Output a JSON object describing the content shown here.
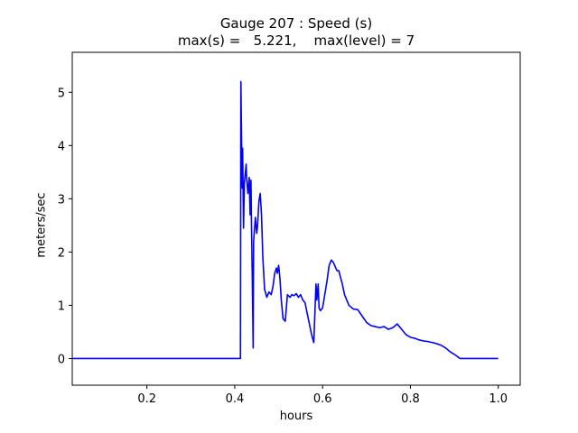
{
  "chart_data": {
    "type": "line",
    "title": "Gauge 207 : Speed (s)",
    "subtitle": "max(s) =   5.221,    max(level) = 7",
    "xlabel": "hours",
    "ylabel": "meters/sec",
    "xlim": [
      0.03,
      1.05
    ],
    "ylim": [
      -0.5,
      5.75
    ],
    "xticks": [
      0.2,
      0.4,
      0.6,
      0.8,
      1.0
    ],
    "xtick_labels": [
      "0.2",
      "0.4",
      "0.6",
      "0.8",
      "1.0"
    ],
    "yticks": [
      0,
      1,
      2,
      3,
      4,
      5
    ],
    "ytick_labels": [
      "0",
      "1",
      "2",
      "3",
      "4",
      "5"
    ],
    "grid": false,
    "series": [
      {
        "color": "#0000ff",
        "x": [
          0.03,
          0.413,
          0.414,
          0.415,
          0.417,
          0.418,
          0.42,
          0.422,
          0.426,
          0.427,
          0.43,
          0.433,
          0.435,
          0.437,
          0.438,
          0.44,
          0.442,
          0.443,
          0.447,
          0.45,
          0.452,
          0.455,
          0.458,
          0.461,
          0.464,
          0.468,
          0.473,
          0.478,
          0.483,
          0.487,
          0.491,
          0.495,
          0.497,
          0.5,
          0.503,
          0.506,
          0.51,
          0.515,
          0.52,
          0.526,
          0.53,
          0.535,
          0.54,
          0.545,
          0.55,
          0.555,
          0.56,
          0.565,
          0.57,
          0.575,
          0.58,
          0.585,
          0.587,
          0.59,
          0.592,
          0.595,
          0.6,
          0.605,
          0.61,
          0.615,
          0.62,
          0.625,
          0.63,
          0.633,
          0.637,
          0.64,
          0.645,
          0.65,
          0.66,
          0.67,
          0.68,
          0.69,
          0.7,
          0.71,
          0.72,
          0.73,
          0.74,
          0.75,
          0.76,
          0.77,
          0.775,
          0.78,
          0.785,
          0.79,
          0.8,
          0.81,
          0.82,
          0.83,
          0.84,
          0.85,
          0.86,
          0.87,
          0.88,
          0.89,
          0.9,
          0.905,
          0.91,
          0.913,
          0.95,
          1.0
        ],
        "y": [
          0.0,
          0.0,
          5.2,
          4.5,
          3.2,
          3.95,
          2.45,
          3.3,
          3.65,
          3.4,
          3.1,
          3.4,
          2.7,
          3.35,
          2.6,
          1.5,
          0.2,
          2.2,
          2.65,
          2.35,
          2.5,
          2.95,
          3.1,
          2.7,
          1.9,
          1.3,
          1.15,
          1.25,
          1.2,
          1.35,
          1.6,
          1.7,
          1.6,
          1.75,
          1.5,
          1.1,
          0.75,
          0.7,
          1.2,
          1.15,
          1.2,
          1.18,
          1.22,
          1.15,
          1.2,
          1.1,
          1.05,
          0.85,
          0.65,
          0.45,
          0.3,
          1.4,
          1.1,
          1.4,
          0.95,
          0.9,
          0.95,
          1.2,
          1.45,
          1.75,
          1.85,
          1.8,
          1.7,
          1.65,
          1.65,
          1.55,
          1.4,
          1.2,
          1.0,
          0.93,
          0.92,
          0.8,
          0.68,
          0.62,
          0.6,
          0.58,
          0.6,
          0.55,
          0.58,
          0.65,
          0.6,
          0.55,
          0.5,
          0.45,
          0.4,
          0.38,
          0.35,
          0.33,
          0.32,
          0.3,
          0.28,
          0.25,
          0.2,
          0.13,
          0.08,
          0.05,
          0.02,
          0.0,
          0.0,
          0.0
        ]
      }
    ]
  }
}
